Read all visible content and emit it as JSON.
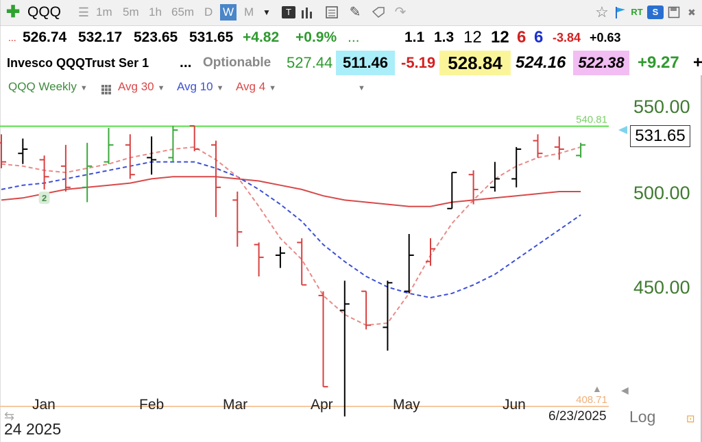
{
  "toolbar": {
    "symbol": "QQQ",
    "intervals": [
      "1m",
      "5m",
      "1h",
      "65m",
      "D",
      "W",
      "M"
    ],
    "selected_interval": "W",
    "tb_button": "T",
    "rt_label": "RT",
    "s_button": "S"
  },
  "quote": {
    "open": "526.74",
    "high": "532.17",
    "low": "523.65",
    "close": "531.65",
    "change": "+4.82",
    "change_pct": "+0.9%",
    "dots1": "...",
    "dots2": "...",
    "v1": "1.1",
    "v2": "1.3",
    "v3": "12",
    "v4": "12",
    "v5": "6",
    "v6": "6",
    "v7": "-3.84",
    "v8": "+0.63",
    "name": "Invesco QQQTrust Ser 1",
    "dots3": "...",
    "optionable": "Optionable",
    "p1": "527.44",
    "p2": "511.46",
    "p3": "-5.19",
    "p4": "528.84",
    "p5": "524.16",
    "p6": "522.38",
    "p7": "+9.27",
    "p8": "+"
  },
  "studies": {
    "main": "QQQ Weekly",
    "avg30": "Avg 30",
    "avg10": "Avg 10",
    "avg4": "Avg 4"
  },
  "colors": {
    "up": "#38a838",
    "down": "#d94040",
    "neutral": "#000000",
    "avg30": "#d94848",
    "avg10": "#3c4fd6",
    "avg4": "#e88a88",
    "high_line": "#55dd44",
    "low_line": "#f5c9a0"
  },
  "chart_data": {
    "type": "ohlc",
    "ylim": [
      395,
      565
    ],
    "yticks": [
      "550.00",
      "500.00",
      "450.00"
    ],
    "ytick_values": [
      550,
      500,
      450
    ],
    "last_price": "531.65",
    "marker": "2",
    "x_labels": [
      "Jan",
      "Feb",
      "Mar",
      "Apr",
      "May",
      "Jun"
    ],
    "year_label": "24 2025",
    "date_label": "6/23/2025",
    "scale_label": "Log",
    "reference_lines": [
      {
        "label": "540.81",
        "value": 540.81,
        "color": "#55dd44"
      },
      {
        "label": "408.71",
        "value": 408.71,
        "color": "#f5c9a0"
      }
    ],
    "bars": [
      {
        "date": "Dec 23",
        "open": 533,
        "high": 537,
        "low": 521,
        "close": 524,
        "color": "red"
      },
      {
        "date": "Dec 30",
        "open": 528,
        "high": 535,
        "low": 523,
        "close": 530,
        "color": "black"
      },
      {
        "date": "Jan 6",
        "open": 525,
        "high": 527,
        "low": 511,
        "close": 517,
        "color": "red"
      },
      {
        "date": "Jan 13",
        "open": 522,
        "high": 532,
        "low": 510,
        "close": 512,
        "color": "red"
      },
      {
        "date": "Jan 20",
        "open": 512,
        "high": 533,
        "low": 505,
        "close": 522,
        "color": "green"
      },
      {
        "date": "Jan 27",
        "open": 524,
        "high": 540,
        "low": 523,
        "close": 532,
        "color": "green"
      },
      {
        "date": "Feb 3",
        "open": 532,
        "high": 537,
        "low": 516,
        "close": 518,
        "color": "red"
      },
      {
        "date": "Feb 10",
        "open": 526,
        "high": 536,
        "low": 518,
        "close": 525,
        "color": "black"
      },
      {
        "date": "Feb 17",
        "open": 526,
        "high": 541,
        "low": 524,
        "close": 539,
        "color": "green"
      },
      {
        "date": "Feb 24",
        "open": 541,
        "high": 541,
        "low": 529,
        "close": 530,
        "color": "red"
      },
      {
        "date": "Mar 3",
        "open": 532,
        "high": 534,
        "low": 498,
        "close": 512,
        "color": "red"
      },
      {
        "date": "Mar 10",
        "open": 506,
        "high": 510,
        "low": 484,
        "close": 491,
        "color": "red"
      },
      {
        "date": "Mar 17",
        "open": 485,
        "high": 486,
        "low": 470,
        "close": 479,
        "color": "red"
      },
      {
        "date": "Mar 24",
        "open": 480,
        "high": 484,
        "low": 474,
        "close": 481,
        "color": "black"
      },
      {
        "date": "Mar 31",
        "open": 486,
        "high": 488,
        "low": 466,
        "close": 466,
        "color": "red"
      },
      {
        "date": "Apr 7",
        "open": 461,
        "high": 463,
        "low": 418,
        "close": 418,
        "color": "red"
      },
      {
        "date": "Apr 14",
        "open": 454,
        "high": 468,
        "low": 404,
        "close": 457,
        "color": "black"
      },
      {
        "date": "Apr 21",
        "open": 463,
        "high": 463,
        "low": 445,
        "close": 447,
        "color": "red"
      },
      {
        "date": "Apr 28",
        "open": 446,
        "high": 468,
        "low": 435,
        "close": 467,
        "color": "black"
      },
      {
        "date": "May 5",
        "open": 463,
        "high": 490,
        "low": 462,
        "close": 480,
        "color": "black"
      },
      {
        "date": "May 12",
        "open": 477,
        "high": 488,
        "low": 475,
        "close": 483,
        "color": "red"
      },
      {
        "date": "May 19",
        "open": 502,
        "high": 519,
        "low": 502,
        "close": 519,
        "color": "black"
      },
      {
        "date": "May 26",
        "open": 518,
        "high": 520,
        "low": 504,
        "close": 511,
        "color": "red"
      },
      {
        "date": "Jun 2",
        "open": 512,
        "high": 524,
        "low": 510,
        "close": 516,
        "color": "black"
      },
      {
        "date": "Jun 9",
        "open": 516,
        "high": 531,
        "low": 512,
        "close": 530,
        "color": "black"
      },
      {
        "date": "Jun 16",
        "open": 534,
        "high": 537,
        "low": 526,
        "close": 528,
        "color": "red"
      },
      {
        "date": "Jun 23",
        "open": 531,
        "high": 536,
        "low": 525,
        "close": 530,
        "color": "red"
      },
      {
        "date": "Jun 30",
        "open": 527,
        "high": 533,
        "low": 526,
        "close": 532,
        "color": "green"
      }
    ],
    "series": [
      {
        "name": "Avg 30",
        "values": [
          506,
          507,
          509,
          511,
          512,
          513,
          514,
          516,
          517,
          517,
          517,
          516,
          515,
          513,
          511,
          508,
          506,
          505,
          504,
          503,
          503,
          505,
          506,
          507,
          508,
          509,
          510,
          510
        ]
      },
      {
        "name": "Avg 10",
        "values": [
          511,
          513,
          514,
          516,
          518,
          520,
          522,
          524,
          524,
          524,
          521,
          517,
          511,
          504,
          496,
          485,
          477,
          470,
          465,
          462,
          460,
          462,
          466,
          471,
          478,
          485,
          492,
          499
        ]
      },
      {
        "name": "Avg 4",
        "values": [
          523,
          522,
          520,
          519,
          521,
          523,
          526,
          528,
          530,
          531,
          525,
          517,
          503,
          488,
          478,
          461,
          452,
          447,
          448,
          462,
          480,
          495,
          506,
          516,
          522,
          526,
          528,
          531
        ]
      }
    ]
  }
}
